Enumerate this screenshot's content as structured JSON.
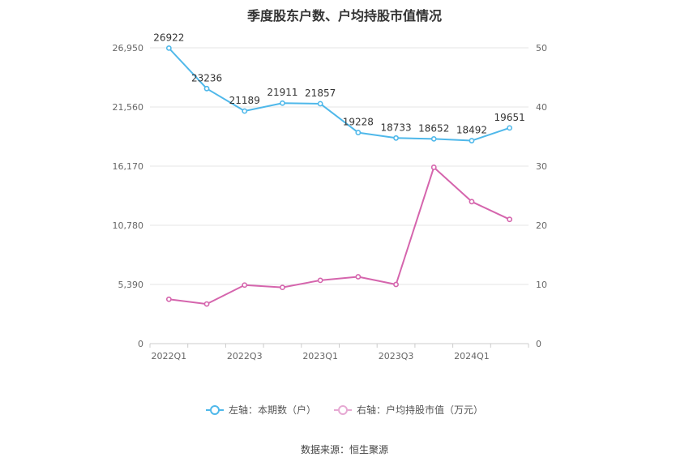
{
  "title": "季度股东户数、户均持股市值情况",
  "source": "数据来源：恒生聚源",
  "legend": [
    {
      "label": "左轴：本期数（户）",
      "color": "#4fb8ea"
    },
    {
      "label": "右轴：户均持股市值（万元）",
      "color": "#d565ad"
    }
  ],
  "chart_data": {
    "type": "line",
    "x": [
      "2022Q1",
      "2022Q2",
      "2022Q3",
      "2022Q4",
      "2023Q1",
      "2023Q2",
      "2023Q3",
      "2023Q4",
      "2024Q1",
      "2024Q2"
    ],
    "x_tick_labels": [
      "2022Q1",
      "2022Q3",
      "2023Q1",
      "2023Q3",
      "2024Q1"
    ],
    "left_axis": {
      "ticks": [
        "0",
        "5,390",
        "10,780",
        "16,170",
        "21,560",
        "26,950"
      ],
      "min": 0,
      "max": 26950
    },
    "right_axis": {
      "ticks": [
        "0",
        "10",
        "20",
        "30",
        "40",
        "50"
      ],
      "min": 0,
      "max": 50
    },
    "grid": true,
    "legend_position": "bottom",
    "series": [
      {
        "name": "左轴：本期数（户）",
        "axis": "left",
        "color": "#4fb8ea",
        "values": [
          26922,
          23236,
          21189,
          21911,
          21857,
          19228,
          18733,
          18652,
          18492,
          19651
        ],
        "labels": [
          "26922",
          "23236",
          "21189",
          "21911",
          "21857",
          "19228",
          "18733",
          "18652",
          "18492",
          "19651"
        ]
      },
      {
        "name": "右轴：户均持股市值（万元）",
        "axis": "right",
        "color": "#d565ad",
        "values": [
          7.5,
          6.7,
          9.9,
          9.5,
          10.7,
          11.3,
          10.0,
          29.8,
          24.0,
          21.0
        ]
      }
    ]
  }
}
